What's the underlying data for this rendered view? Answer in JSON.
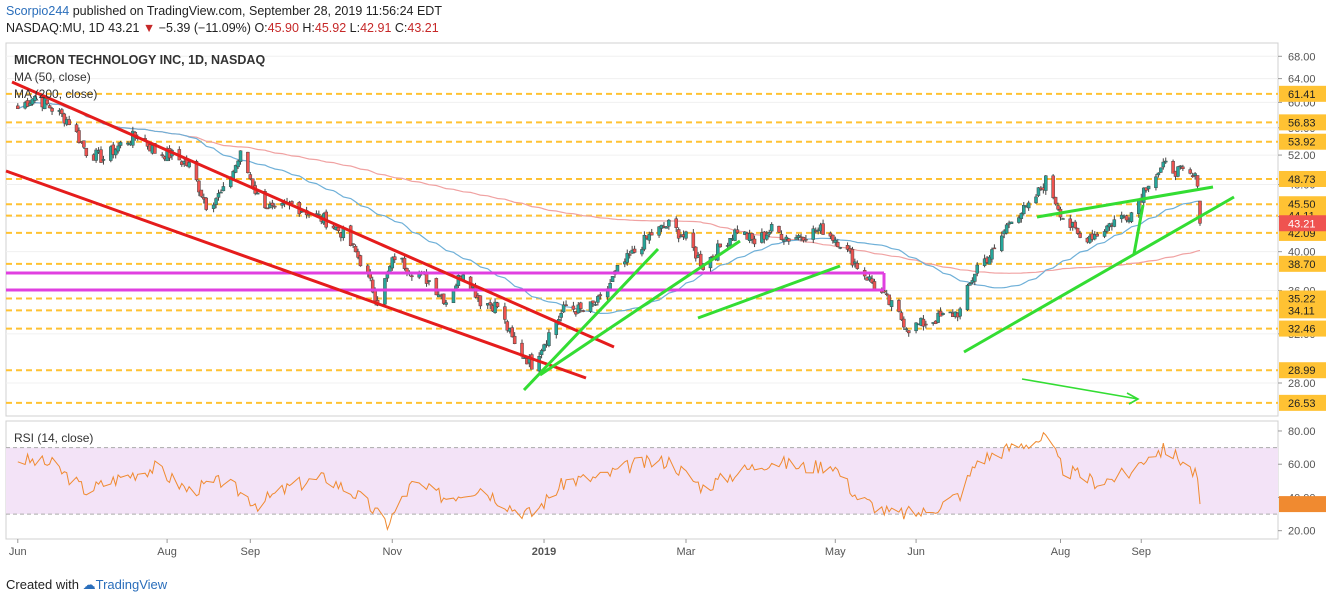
{
  "header": {
    "author": "Scorpio244",
    "published_text": "published on TradingView.com, September 28, 2019 11:56:24 EDT",
    "symbol_line": "NASDAQ:MU, 1D",
    "last": "43.21",
    "change": "−5.39 (−11.09%)",
    "open_label": "O:",
    "open": "45.90",
    "high_label": "H:",
    "high": "45.92",
    "low_label": "L:",
    "low": "42.91",
    "close_label": "C:",
    "close": "43.21"
  },
  "footer": {
    "created_with": "Created with",
    "brand": "TradingView"
  },
  "colors": {
    "up": "#26a69a",
    "down": "#ef5350",
    "candle_outline": "#555555",
    "ma50": "#6fb0d8",
    "ma200": "#f0a2a2",
    "hlevel": "#ffc233",
    "trend_red": "#e51c1c",
    "trend_green": "#33dd33",
    "magenta": "#e040e0",
    "rsi": "#f08a30",
    "rsi_band": "#f3e3f7"
  },
  "chart_data": [
    {
      "type": "candlestick",
      "title": "MICRON TECHNOLOGY INC, 1D, NASDAQ",
      "legend": [
        "MA (50, close)",
        "MA (200, close)"
      ],
      "x_tick_labels": [
        "Jun",
        "Aug",
        "Sep",
        "Nov",
        "2019",
        "Mar",
        "May",
        "Jun",
        "Aug",
        "Sep"
      ],
      "y_tick_labels": [
        "68.00",
        "64.00",
        "60.00",
        "56.00",
        "52.00",
        "48.00",
        "44.00",
        "40.00",
        "36.00",
        "32.00",
        "28.00"
      ],
      "y_scale": "log",
      "ylim": [
        25.6,
        70.5
      ],
      "horizontal_levels": [
        61.41,
        56.83,
        53.92,
        48.73,
        45.5,
        44.11,
        42.09,
        38.7,
        35.22,
        34.11,
        32.46,
        28.99,
        26.53
      ],
      "last_price": 43.21,
      "close_anchors": [
        [
          "2018-06-01",
          59.0
        ],
        [
          "2018-06-08",
          61.0
        ],
        [
          "2018-06-15",
          59.0
        ],
        [
          "2018-06-22",
          57.0
        ],
        [
          "2018-06-29",
          52.5
        ],
        [
          "2018-07-06",
          51.5
        ],
        [
          "2018-07-13",
          53.5
        ],
        [
          "2018-07-20",
          55.0
        ],
        [
          "2018-07-27",
          52.5
        ],
        [
          "2018-08-03",
          52.0
        ],
        [
          "2018-08-10",
          50.5
        ],
        [
          "2018-08-17",
          45.5
        ],
        [
          "2018-08-24",
          47.0
        ],
        [
          "2018-08-31",
          52.0
        ],
        [
          "2018-09-07",
          46.5
        ],
        [
          "2018-09-14",
          44.5
        ],
        [
          "2018-09-21",
          45.5
        ],
        [
          "2018-09-28",
          44.5
        ],
        [
          "2018-10-05",
          43.5
        ],
        [
          "2018-10-12",
          42.0
        ],
        [
          "2018-10-19",
          39.0
        ],
        [
          "2018-10-26",
          35.0
        ],
        [
          "2018-11-02",
          39.5
        ],
        [
          "2018-11-09",
          38.0
        ],
        [
          "2018-11-16",
          37.0
        ],
        [
          "2018-11-23",
          35.0
        ],
        [
          "2018-11-30",
          38.0
        ],
        [
          "2018-12-07",
          35.0
        ],
        [
          "2018-12-14",
          34.5
        ],
        [
          "2018-12-21",
          31.0
        ],
        [
          "2018-12-28",
          29.5
        ],
        [
          "2019-01-04",
          32.0
        ],
        [
          "2019-01-11",
          34.5
        ],
        [
          "2019-01-18",
          34.0
        ],
        [
          "2019-01-25",
          35.0
        ],
        [
          "2019-02-01",
          38.0
        ],
        [
          "2019-02-08",
          40.0
        ],
        [
          "2019-02-15",
          42.0
        ],
        [
          "2019-02-22",
          43.0
        ],
        [
          "2019-03-01",
          41.5
        ],
        [
          "2019-03-08",
          38.5
        ],
        [
          "2019-03-15",
          40.5
        ],
        [
          "2019-03-22",
          42.5
        ],
        [
          "2019-03-29",
          41.0
        ],
        [
          "2019-04-05",
          42.5
        ],
        [
          "2019-04-12",
          41.5
        ],
        [
          "2019-04-19",
          42.0
        ],
        [
          "2019-04-26",
          42.5
        ],
        [
          "2019-05-03",
          41.0
        ],
        [
          "2019-05-10",
          38.5
        ],
        [
          "2019-05-17",
          36.5
        ],
        [
          "2019-05-24",
          34.5
        ],
        [
          "2019-05-31",
          32.5
        ],
        [
          "2019-06-07",
          33.0
        ],
        [
          "2019-06-14",
          33.5
        ],
        [
          "2019-06-21",
          34.0
        ],
        [
          "2019-06-28",
          38.5
        ],
        [
          "2019-07-05",
          40.0
        ],
        [
          "2019-07-12",
          44.0
        ],
        [
          "2019-07-19",
          45.0
        ],
        [
          "2019-07-26",
          48.5
        ],
        [
          "2019-08-02",
          44.0
        ],
        [
          "2019-08-09",
          41.5
        ],
        [
          "2019-08-16",
          42.0
        ],
        [
          "2019-08-23",
          43.5
        ],
        [
          "2019-08-30",
          44.5
        ],
        [
          "2019-09-06",
          48.5
        ],
        [
          "2019-09-13",
          50.5
        ],
        [
          "2019-09-20",
          49.5
        ],
        [
          "2019-09-26",
          48.6
        ],
        [
          "2019-09-27",
          43.21
        ]
      ]
    },
    {
      "type": "line",
      "title": "RSI (14, close)",
      "y_tick_labels": [
        "80.00",
        "60.00",
        "40.00",
        "20.00"
      ],
      "ylim": [
        15,
        86
      ],
      "band": [
        30,
        70
      ],
      "last_value": 36,
      "values_anchors": [
        [
          "2018-06-01",
          63
        ],
        [
          "2018-06-15",
          60
        ],
        [
          "2018-06-29",
          44
        ],
        [
          "2018-07-13",
          52
        ],
        [
          "2018-07-27",
          58
        ],
        [
          "2018-08-10",
          44
        ],
        [
          "2018-08-24",
          50
        ],
        [
          "2018-09-07",
          36
        ],
        [
          "2018-09-21",
          47
        ],
        [
          "2018-10-05",
          52
        ],
        [
          "2018-10-19",
          40
        ],
        [
          "2018-10-30",
          24
        ],
        [
          "2018-11-09",
          48
        ],
        [
          "2018-11-23",
          40
        ],
        [
          "2018-12-07",
          46
        ],
        [
          "2018-12-21",
          33
        ],
        [
          "2018-12-28",
          30
        ],
        [
          "2019-01-11",
          50
        ],
        [
          "2019-01-25",
          52
        ],
        [
          "2019-02-08",
          60
        ],
        [
          "2019-02-22",
          62
        ],
        [
          "2019-03-08",
          46
        ],
        [
          "2019-03-22",
          55
        ],
        [
          "2019-04-05",
          62
        ],
        [
          "2019-04-19",
          58
        ],
        [
          "2019-04-30",
          60
        ],
        [
          "2019-05-10",
          40
        ],
        [
          "2019-05-24",
          30
        ],
        [
          "2019-06-07",
          31
        ],
        [
          "2019-06-21",
          42
        ],
        [
          "2019-06-28",
          62
        ],
        [
          "2019-07-12",
          70
        ],
        [
          "2019-07-26",
          76
        ],
        [
          "2019-08-02",
          57
        ],
        [
          "2019-08-16",
          49
        ],
        [
          "2019-08-30",
          55
        ],
        [
          "2019-09-06",
          66
        ],
        [
          "2019-09-13",
          69
        ],
        [
          "2019-09-20",
          62
        ],
        [
          "2019-09-26",
          52
        ],
        [
          "2019-09-27",
          36
        ]
      ]
    }
  ]
}
